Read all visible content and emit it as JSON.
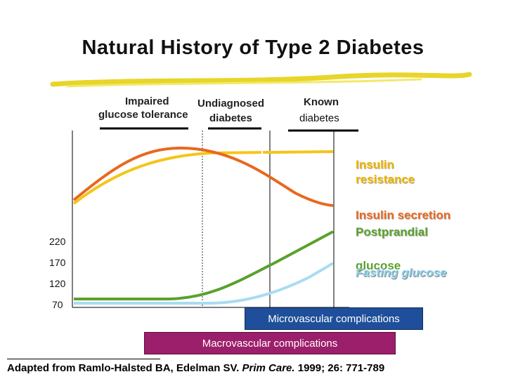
{
  "slide": {
    "title": "Natural History of Type 2 Diabetes",
    "stages": {
      "impaired": "Impaired",
      "undiagnosed": "Undiagnosed",
      "glucose_tolerance": "glucose tolerance",
      "diabetes": "diabetes",
      "known": "Known",
      "known_diabetes": "diabetes"
    },
    "y_ticks": [
      "220",
      "170",
      "120",
      "70"
    ],
    "curve_labels": {
      "insulin_resistance_1": "Insulin",
      "insulin_resistance_2": "resistance",
      "insulin_secretion": "Insulin secretion",
      "postprandial": "Postprandial",
      "glucose": "glucose",
      "fasting_glucose": "Fasting glucose"
    },
    "bars": {
      "microvascular": "Microvascular complications",
      "macrovascular": "Macrovascular complications"
    },
    "citation": {
      "prefix": "Adapted from Ramlo-Halsted BA, Edelman SV. ",
      "journal": "Prim Care.",
      "suffix": " 1999; 26: 771-789"
    }
  },
  "colors": {
    "insulin_resistance": "#f5c518",
    "insulin_secretion": "#e8681e",
    "postprandial_glucose": "#5aa12d",
    "fasting_glucose": "#a8dcf2",
    "title_underline": "#e8d52a",
    "microvascular_bar": "#1f4f9a",
    "macrovascular_bar": "#9c1f6b"
  }
}
